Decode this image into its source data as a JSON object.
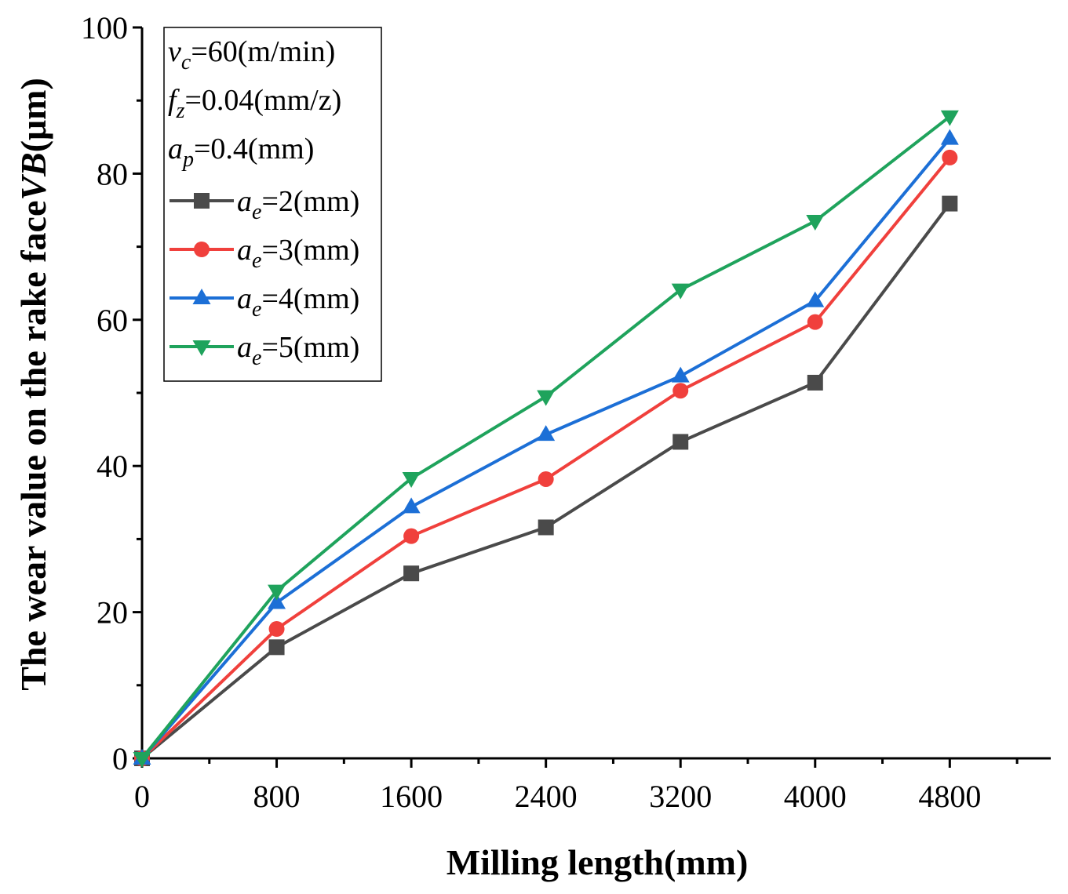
{
  "chart_data": {
    "type": "line",
    "title": "",
    "xlabel": "Milling length(mm)",
    "ylabel_prefix": "The wear value on the rake face",
    "ylabel_symbol": "VB",
    "ylabel_unit": "(μm)",
    "x": [
      0,
      800,
      1600,
      2400,
      3200,
      4000,
      4800
    ],
    "x_ticks": [
      0,
      800,
      1600,
      2400,
      3200,
      4000,
      4800
    ],
    "xlim": [
      0,
      5400
    ],
    "y_ticks": [
      0,
      20,
      40,
      60,
      80,
      100
    ],
    "ylim": [
      0,
      100
    ],
    "grid": false,
    "legend_position": "top-left",
    "conditions": [
      {
        "var": "v",
        "sub": "c",
        "text": "=60(m/min)"
      },
      {
        "var": "f",
        "sub": "z",
        "text": "=0.04(mm/z)"
      },
      {
        "var": "a",
        "sub": "p",
        "text": "=0.4(mm)"
      }
    ],
    "series": [
      {
        "name": "ae=2(mm)",
        "var": "a",
        "sub": "e",
        "text": "=2(mm)",
        "color": "#4a4a4a",
        "marker": "square",
        "values": [
          0,
          15.2,
          25.3,
          31.6,
          43.3,
          51.4,
          75.9
        ]
      },
      {
        "name": "ae=3(mm)",
        "var": "a",
        "sub": "e",
        "text": "=3(mm)",
        "color": "#f0403c",
        "marker": "circle",
        "values": [
          0,
          17.7,
          30.4,
          38.2,
          50.3,
          59.7,
          82.2
        ]
      },
      {
        "name": "ae=4(mm)",
        "var": "a",
        "sub": "e",
        "text": "=4(mm)",
        "color": "#1c6fd6",
        "marker": "triangle-up",
        "values": [
          0,
          21.3,
          34.4,
          44.3,
          52.3,
          62.6,
          84.8
        ]
      },
      {
        "name": "ae=5(mm)",
        "var": "a",
        "sub": "e",
        "text": "=5(mm)",
        "color": "#1fa35c",
        "marker": "triangle-down",
        "values": [
          0,
          22.9,
          38.3,
          49.5,
          64.1,
          73.5,
          87.8
        ]
      }
    ]
  }
}
